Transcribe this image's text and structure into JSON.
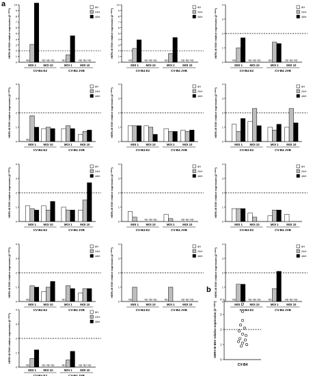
{
  "figure": {
    "panel_a_letter": "a",
    "panel_b_letter": "b"
  },
  "colors": {
    "bar_8h": "#ffffff",
    "bar_24h": "#bdbdbd",
    "bar_48h": "#000000",
    "axis": "#000000"
  },
  "chart_data": [
    {
      "type": "bar",
      "panel": "a",
      "ylabel": "HERV-W ENV relative expression (2⁻ᐞᐞᶜᵗ)",
      "ylim": [
        0,
        10
      ],
      "yticks": [
        0,
        1,
        2,
        3,
        4,
        5,
        6,
        7,
        8,
        9,
        10
      ],
      "reference_line": 2,
      "legend": [
        "8H",
        "24H",
        "48H"
      ],
      "legend_position": "top-right",
      "groups": [
        {
          "label": "CV-B4 E2",
          "subgroups": [
            "MOI 1",
            "MOI 10"
          ]
        },
        {
          "label": "CV-B4 JVB",
          "subgroups": [
            "MOI 1",
            "MOI 10"
          ]
        }
      ],
      "series": [
        {
          "name": "8H",
          "values": [
            null,
            null,
            null,
            null
          ]
        },
        {
          "name": "24H",
          "values": [
            3.1,
            null,
            1.3,
            null
          ]
        },
        {
          "name": "48H",
          "values": [
            10.3,
            null,
            4.6,
            null
          ]
        }
      ],
      "na_label": "ND"
    },
    {
      "type": "bar",
      "panel": "a",
      "ylabel": "HERV-W ENV relative expression (2⁻ᐞᐞᶜᵗ)",
      "ylim": [
        0,
        10
      ],
      "yticks": [
        0,
        1,
        2,
        3,
        4,
        5,
        6,
        7,
        8,
        9,
        10
      ],
      "reference_line": 2,
      "legend": [
        "8H",
        "24H",
        "48H"
      ],
      "legend_position": "top-right",
      "groups": [
        {
          "label": "CV-B4 E2",
          "subgroups": [
            "MOI 1",
            "MOI 10"
          ]
        },
        {
          "label": "CV-B4 JVB",
          "subgroups": [
            "MOI 1",
            "MOI 10"
          ]
        }
      ],
      "series": [
        {
          "name": "8H",
          "values": [
            null,
            null,
            null,
            null
          ]
        },
        {
          "name": "24H",
          "values": [
            2.4,
            null,
            1.5,
            null
          ]
        },
        {
          "name": "48H",
          "values": [
            3.9,
            null,
            4.3,
            null
          ]
        }
      ],
      "na_label": "ND"
    },
    {
      "type": "bar",
      "panel": "a",
      "ylabel": "HERV-W ENV relative expression (2⁻ᐞᐞᶜᵗ)",
      "ylim": [
        0,
        4
      ],
      "yticks": [
        0,
        1,
        2,
        3,
        4
      ],
      "reference_line": 2,
      "legend": [
        "8H",
        "24H",
        "48H"
      ],
      "legend_position": "top-right",
      "groups": [
        {
          "label": "CV-B4 E2",
          "subgroups": [
            "MOI 1",
            "MOI 10"
          ]
        },
        {
          "label": "CV-B4 JVB",
          "subgroups": [
            "MOI 1",
            "MOI 10"
          ]
        }
      ],
      "series": [
        {
          "name": "8H",
          "values": [
            null,
            null,
            null,
            null
          ]
        },
        {
          "name": "24H",
          "values": [
            1.0,
            null,
            1.4,
            null
          ]
        },
        {
          "name": "48H",
          "values": [
            1.7,
            null,
            1.3,
            null
          ]
        }
      ],
      "na_label": "ND"
    },
    {
      "type": "bar",
      "panel": "a",
      "ylabel": "HERV-W ENV relative expression (2⁻ᐞᐞᶜᵗ)",
      "ylim": [
        0,
        4
      ],
      "yticks": [
        0,
        1,
        2,
        3,
        4
      ],
      "reference_line": 2,
      "legend": [
        "8H",
        "24H",
        "48H"
      ],
      "legend_position": "top-right",
      "groups": [
        {
          "label": "CV-B4 E2",
          "subgroups": [
            "MOI 1",
            "MOI 10"
          ]
        },
        {
          "label": "CV-B4 JVB",
          "subgroups": [
            "MOI 1",
            "MOI 10"
          ]
        }
      ],
      "series": [
        {
          "name": "8H",
          "values": [
            null,
            0.9,
            0.9,
            0.5
          ]
        },
        {
          "name": "24H",
          "values": [
            1.8,
            1.0,
            1.1,
            0.7
          ]
        },
        {
          "name": "48H",
          "values": [
            1.0,
            0.9,
            0.9,
            0.8
          ]
        }
      ],
      "na_label": "ND"
    },
    {
      "type": "bar",
      "panel": "a",
      "ylabel": "HERV-W ENV relative expression (2⁻ᐞᐞᶜᵗ)",
      "ylim": [
        0,
        4
      ],
      "yticks": [
        0,
        1,
        2,
        3,
        4
      ],
      "reference_line": 2,
      "legend": [
        "8H",
        "24H",
        "48H"
      ],
      "legend_position": "top-right",
      "groups": [
        {
          "label": "CV-B4 E2",
          "subgroups": [
            "MOI 1",
            "MOI 10"
          ]
        },
        {
          "label": "CV-B4 JVB",
          "subgroups": [
            "MOI 1",
            "MOI 10"
          ]
        }
      ],
      "series": [
        {
          "name": "8H",
          "values": [
            1.1,
            1.1,
            0.9,
            0.8
          ]
        },
        {
          "name": "24H",
          "values": [
            1.1,
            1.0,
            0.7,
            0.7
          ]
        },
        {
          "name": "48H",
          "values": [
            1.1,
            0.5,
            0.7,
            0.8
          ]
        }
      ],
      "na_label": "ND"
    },
    {
      "type": "bar",
      "panel": "a",
      "ylabel": "HERV-W ENV relative expression (2⁻ᐞᐞᶜᵗ)",
      "ylim": [
        0,
        4
      ],
      "yticks": [
        0,
        1,
        2,
        3,
        4
      ],
      "reference_line": 2,
      "legend": [
        "8H",
        "24H",
        "48H"
      ],
      "legend_position": "top-right",
      "groups": [
        {
          "label": "CV-B4 E2",
          "subgroups": [
            "MOI 1",
            "MOI 10"
          ]
        },
        {
          "label": "CV-B4 JVB",
          "subgroups": [
            "MOI 1",
            "MOI 10"
          ]
        }
      ],
      "series": [
        {
          "name": "8H",
          "values": [
            1.2,
            1.4,
            1.0,
            1.0
          ]
        },
        {
          "name": "24H",
          "values": [
            0.7,
            2.3,
            0.8,
            2.3
          ]
        },
        {
          "name": "48H",
          "values": [
            1.6,
            1.1,
            1.2,
            1.3
          ]
        }
      ],
      "na_label": "ND"
    },
    {
      "type": "bar",
      "panel": "a",
      "ylabel": "HERV-W ENV relative expression (2⁻ᐞᐞᶜᵗ)",
      "ylim": [
        0,
        4
      ],
      "yticks": [
        0,
        1,
        2,
        3,
        4
      ],
      "reference_line": 2,
      "legend": [
        "8H",
        "24H",
        "48H"
      ],
      "legend_position": "top-right",
      "groups": [
        {
          "label": "CV-B4 E2",
          "subgroups": [
            "MOI 1",
            "MOI 10"
          ]
        },
        {
          "label": "CV-B4 JVB",
          "subgroups": [
            "MOI 1",
            "MOI 10"
          ]
        }
      ],
      "series": [
        {
          "name": "8H",
          "values": [
            1.1,
            1.1,
            1.0,
            0.8
          ]
        },
        {
          "name": "24H",
          "values": [
            0.9,
            0.8,
            0.8,
            1.5
          ]
        },
        {
          "name": "48H",
          "values": [
            0.8,
            1.4,
            0.8,
            2.7
          ]
        }
      ],
      "na_label": "ND"
    },
    {
      "type": "bar",
      "panel": "a",
      "ylabel": "HERV-W ENV relative expression (2⁻ᐞᐞᶜᵗ)",
      "ylim": [
        0,
        4
      ],
      "yticks": [
        0,
        1,
        2,
        3,
        4
      ],
      "reference_line": 2,
      "legend": [
        "8H",
        "24H",
        "48H"
      ],
      "legend_position": "top-right",
      "groups": [
        {
          "label": "CV-B4 E2",
          "subgroups": [
            "MOI 1",
            "MOI 10"
          ]
        },
        {
          "label": "CV-B4 JVB",
          "subgroups": [
            "MOI 1",
            "MOI 10"
          ]
        }
      ],
      "series": [
        {
          "name": "8H",
          "values": [
            0.7,
            null,
            0.5,
            null
          ]
        },
        {
          "name": "24H",
          "values": [
            0.3,
            null,
            0.2,
            null
          ]
        },
        {
          "name": "48H",
          "values": [
            null,
            null,
            null,
            null
          ]
        }
      ],
      "na_label": "ND"
    },
    {
      "type": "bar",
      "panel": "a",
      "ylabel": "HERV-W ENV relative expression (2⁻ᐞᐞᶜᵗ)",
      "ylim": [
        0,
        4
      ],
      "yticks": [
        0,
        1,
        2,
        3,
        4
      ],
      "reference_line": 2,
      "legend": [
        "8H",
        "24H",
        "48H"
      ],
      "legend_position": "top-right",
      "groups": [
        {
          "label": "CV-B4 E2",
          "subgroups": [
            "MOI 1",
            "MOI 10"
          ]
        },
        {
          "label": "CV-B4 JVB",
          "subgroups": [
            "MOI 1",
            "MOI 10"
          ]
        }
      ],
      "series": [
        {
          "name": "8H",
          "values": [
            0.9,
            0.6,
            0.4,
            0.5
          ]
        },
        {
          "name": "24H",
          "values": [
            0.9,
            0.3,
            0.8,
            null
          ]
        },
        {
          "name": "48H",
          "values": [
            0.9,
            null,
            0.8,
            null
          ]
        }
      ],
      "na_label": "ND"
    },
    {
      "type": "bar",
      "panel": "a",
      "ylabel": "HERV-W ENV relative expression (2⁻ᐞᐞᶜᵗ)",
      "ylim": [
        0,
        4
      ],
      "yticks": [
        0,
        1,
        2,
        3,
        4
      ],
      "reference_line": 2,
      "legend": [
        "8H",
        "24H",
        "48H"
      ],
      "legend_position": "top-right",
      "groups": [
        {
          "label": "CV-B4 E2",
          "subgroups": [
            "MOI 1",
            "MOI 10"
          ]
        },
        {
          "label": "CV-B4 JVB",
          "subgroups": [
            "MOI 1",
            "MOI 10"
          ]
        }
      ],
      "series": [
        {
          "name": "8H",
          "values": [
            null,
            0.7,
            null,
            0.6
          ]
        },
        {
          "name": "24H",
          "values": [
            1.1,
            1.0,
            1.1,
            0.9
          ]
        },
        {
          "name": "48H",
          "values": [
            1.0,
            1.4,
            0.9,
            0.9
          ]
        }
      ],
      "na_label": "ND"
    },
    {
      "type": "bar",
      "panel": "a",
      "ylabel": "HERV-W ENV relative expression (2⁻ᐞᐞᶜᵗ)",
      "ylim": [
        0,
        4
      ],
      "yticks": [
        0,
        1,
        2,
        3,
        4
      ],
      "reference_line": 2,
      "legend": [
        "8H",
        "24H",
        "48H"
      ],
      "legend_position": "top-right",
      "groups": [
        {
          "label": "CV-B4 E2",
          "subgroups": [
            "MOI 1",
            "MOI 10"
          ]
        },
        {
          "label": "CV-B4 JVB",
          "subgroups": [
            "MOI 1",
            "MOI 10"
          ]
        }
      ],
      "series": [
        {
          "name": "8H",
          "values": [
            null,
            null,
            null,
            null
          ]
        },
        {
          "name": "24H",
          "values": [
            1.0,
            null,
            1.0,
            null
          ]
        },
        {
          "name": "48H",
          "values": [
            null,
            null,
            null,
            null
          ]
        }
      ],
      "na_label": "ND"
    },
    {
      "type": "bar",
      "panel": "a",
      "ylabel": "HERV-W ENV relative expression (2⁻ᐞᐞᶜᵗ)",
      "ylim": [
        0,
        4
      ],
      "yticks": [
        0,
        1,
        2,
        3,
        4
      ],
      "reference_line": 2,
      "legend": [
        "8H",
        "24H",
        "48H"
      ],
      "legend_position": "top-right",
      "groups": [
        {
          "label": "CV-B4 E2",
          "subgroups": [
            "MOI 1",
            "MOI 10"
          ]
        },
        {
          "label": "CV-B4 JVB",
          "subgroups": [
            "MOI 1",
            "MOI 10"
          ]
        }
      ],
      "series": [
        {
          "name": "8H",
          "values": [
            null,
            null,
            null,
            null
          ]
        },
        {
          "name": "24H",
          "values": [
            1.2,
            null,
            0.9,
            null
          ]
        },
        {
          "name": "48H",
          "values": [
            1.2,
            null,
            2.1,
            null
          ]
        }
      ],
      "na_label": "ND"
    },
    {
      "type": "bar",
      "panel": "a",
      "ylabel": "HERV-W ENV relative expression (2⁻ᐞᐞᶜᵗ)",
      "ylim": [
        0,
        4
      ],
      "yticks": [
        0,
        1,
        2,
        3,
        4
      ],
      "reference_line": 2,
      "legend": [
        "8H",
        "24H",
        "48H"
      ],
      "legend_position": "top-right",
      "groups": [
        {
          "label": "CV-B4 E2",
          "subgroups": [
            "MOI 1",
            "MOI 10"
          ]
        },
        {
          "label": "CV-B4 JVB",
          "subgroups": [
            "MOI 1",
            "MOI 10"
          ]
        }
      ],
      "series": [
        {
          "name": "8H",
          "values": [
            null,
            null,
            null,
            null
          ]
        },
        {
          "name": "24H",
          "values": [
            0.6,
            null,
            0.5,
            null
          ]
        },
        {
          "name": "48H",
          "values": [
            1.2,
            null,
            1.1,
            null
          ]
        }
      ],
      "na_label": "ND"
    },
    {
      "type": "scatter",
      "panel": "b",
      "ylabel": "HERV-W ENV relative expression (2⁻ᐞᐞᶜᵗ)",
      "xlabel": "CV-B4",
      "ylim": [
        0,
        4
      ],
      "yticks": [
        0,
        1,
        2,
        3,
        4
      ],
      "reference_line": 2,
      "values": [
        3.7,
        3.2,
        2.6,
        2.3,
        2.1,
        1.9,
        1.7,
        1.6,
        1.4,
        1.3,
        1.2,
        1.1,
        1.0,
        0.9
      ]
    }
  ]
}
